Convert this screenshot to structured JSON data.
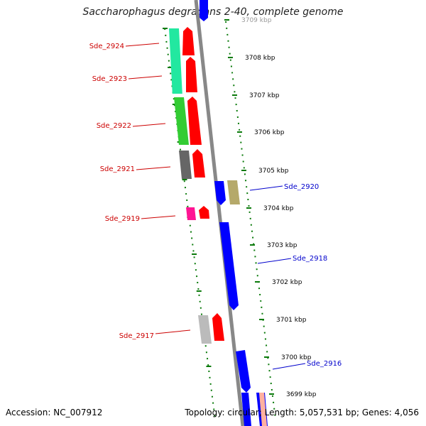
{
  "title": "Saccharophagus degradans 2-40, complete genome",
  "footer": {
    "accession": "Accession: NC_007912",
    "stats": "Topology: circular; Length: 5,057,531 bp; Genes: 4,056"
  },
  "colors": {
    "backbone": "#888888",
    "tick": "#0a7a0a",
    "label_left": "#cc0000",
    "label_right": "#0000cc"
  },
  "ruler": [
    {
      "label": "3709 kbp"
    },
    {
      "label": "3708 kbp"
    },
    {
      "label": "3707 kbp"
    },
    {
      "label": "3706 kbp"
    },
    {
      "label": "3705 kbp"
    },
    {
      "label": "3704 kbp"
    },
    {
      "label": "3703 kbp"
    },
    {
      "label": "3702 kbp"
    },
    {
      "label": "3701 kbp"
    },
    {
      "label": "3700 kbp"
    },
    {
      "label": "3699 kbp"
    }
  ],
  "genes_left": [
    {
      "name": "Sde_2924",
      "box_color": "#22e8a0",
      "arrow_color": "#ff0000"
    },
    {
      "name": "Sde_2923",
      "box_color": "#22e8a0",
      "arrow_color": "#ff0000"
    },
    {
      "name": "Sde_2922",
      "box_color": "#33cc33",
      "arrow_color": "#ff0000"
    },
    {
      "name": "Sde_2921",
      "box_color": "#666666",
      "arrow_color": "#ff0000"
    },
    {
      "name": "Sde_2919",
      "box_color": "#ff1493",
      "arrow_color": "#ff0000"
    },
    {
      "name": "Sde_2917",
      "box_color": "#bbbbbb",
      "arrow_color": "#ff0000"
    }
  ],
  "genes_right": [
    {
      "name": "Sde_2920",
      "box_color": "#b5a96a",
      "arrow_color": "#0000ff"
    },
    {
      "name": "Sde_2918",
      "box_color": "",
      "arrow_color": "#0000ff"
    },
    {
      "name": "Sde_2916",
      "box_color": "",
      "arrow_color": "#0000ff"
    }
  ]
}
